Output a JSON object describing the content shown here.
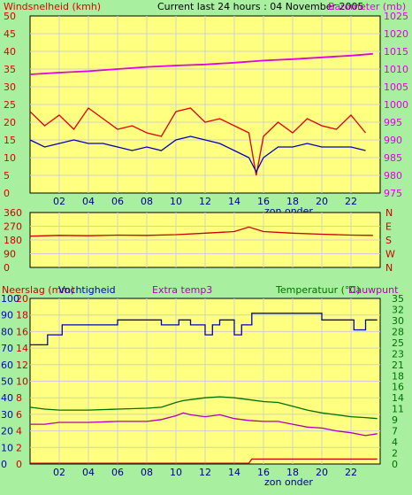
{
  "header": {
    "title": "Current last 24 hours : 04 November 2005",
    "wind_label": "Windsnelheid (kmh)",
    "baro_label": "Barometer (mb)"
  },
  "colors": {
    "background": "#a8f0a0",
    "plot": "#ffff80",
    "grid": "#d0d0d0",
    "wind_speed": "#e00000",
    "wind_avg": "#0000c0",
    "barometer": "#e000e0",
    "direction": "#cc0000",
    "rain": "#cc0000",
    "humidity": "#0000c0",
    "temperature": "#007000",
    "dewpoint": "#b000b0"
  },
  "chart_data": [
    {
      "type": "line",
      "name": "wind-barometer",
      "x_label": "zon onder",
      "x_ticks": [
        "02",
        "04",
        "06",
        "08",
        "10",
        "12",
        "14",
        "16",
        "18",
        "20",
        "22"
      ],
      "y_left_ticks": [
        "0",
        "5",
        "10",
        "15",
        "20",
        "25",
        "30",
        "35",
        "40",
        "45",
        "50"
      ],
      "y_left_range": [
        0,
        50
      ],
      "y_right_ticks": [
        "975",
        "980",
        "985",
        "990",
        "995",
        "1000",
        "1005",
        "1010",
        "1015",
        "1020",
        "1025"
      ],
      "y_right_range": [
        975,
        1025
      ],
      "series": [
        {
          "name": "Windsnelheid (kmh)",
          "axis": "left",
          "key": "wind_speed",
          "x": [
            0,
            1,
            2,
            3,
            4,
            5,
            6,
            7,
            8,
            9,
            10,
            11,
            12,
            13,
            14,
            15,
            15.5,
            16,
            17,
            18,
            19,
            20,
            21,
            22,
            23
          ],
          "y": [
            23,
            19,
            22,
            18,
            24,
            21,
            18,
            19,
            17,
            16,
            23,
            24,
            20,
            21,
            19,
            17,
            5,
            16,
            20,
            17,
            21,
            19,
            18,
            22,
            17
          ]
        },
        {
          "name": "avg",
          "axis": "left",
          "key": "wind_avg",
          "x": [
            0,
            1,
            2,
            3,
            4,
            5,
            6,
            7,
            8,
            9,
            10,
            11,
            12,
            13,
            14,
            15,
            15.5,
            16,
            17,
            18,
            19,
            20,
            21,
            22,
            23
          ],
          "y": [
            15,
            13,
            14,
            15,
            14,
            14,
            13,
            12,
            13,
            12,
            15,
            16,
            15,
            14,
            12,
            10,
            6,
            10,
            13,
            13,
            14,
            13,
            13,
            13,
            12
          ]
        },
        {
          "name": "Barometer (mb)",
          "axis": "right",
          "key": "barometer",
          "x": [
            0,
            2,
            4,
            6,
            8,
            10,
            12,
            14,
            16,
            18,
            20,
            22,
            23.5
          ],
          "y": [
            1008.5,
            1009.0,
            1009.4,
            1010.0,
            1010.6,
            1011.0,
            1011.3,
            1011.8,
            1012.4,
            1012.8,
            1013.3,
            1013.8,
            1014.3
          ]
        }
      ]
    },
    {
      "type": "line",
      "name": "wind-direction",
      "y_left_ticks": [
        "0",
        "90",
        "180",
        "270",
        "360"
      ],
      "y_left_range": [
        0,
        360
      ],
      "y_right_ticks": [
        "N",
        "W",
        "S",
        "E",
        "N"
      ],
      "series": [
        {
          "name": "direction",
          "key": "direction",
          "x": [
            0,
            2,
            4,
            6,
            8,
            10,
            12,
            14,
            15,
            16,
            18,
            20,
            22,
            23.5
          ],
          "y": [
            205,
            210,
            208,
            212,
            210,
            215,
            225,
            235,
            265,
            235,
            225,
            218,
            212,
            210
          ]
        }
      ]
    },
    {
      "type": "line",
      "name": "rain-humidity-temperature",
      "labels": {
        "rain": "Neerslag (mm)",
        "humidity": "Vochtigheid",
        "extra": "Extra temp3",
        "temp": "Temperatuur (°C)",
        "dew": "Dauwpunt"
      },
      "x_label": "zon onder",
      "x_ticks": [
        "02",
        "04",
        "06",
        "08",
        "10",
        "12",
        "14",
        "16",
        "18",
        "20",
        "22"
      ],
      "y_left_ticks": [
        "0",
        "2",
        "4",
        "6",
        "8",
        "10",
        "12",
        "14",
        "16",
        "18",
        "20"
      ],
      "y_left_range": [
        0,
        20
      ],
      "y_left2_ticks": [
        "0",
        "10",
        "20",
        "30",
        "40",
        "50",
        "60",
        "70",
        "80",
        "90",
        "100"
      ],
      "y_right_ticks": [
        "0",
        "2",
        "4",
        "7",
        "9",
        "11",
        "14",
        "16",
        "18",
        "21",
        "23",
        "25",
        "28",
        "30",
        "32",
        "35"
      ],
      "y_right_range": [
        0,
        35
      ],
      "series": [
        {
          "name": "Neerslag (mm)",
          "key": "rain",
          "x": [
            0,
            15,
            15.2,
            23.8
          ],
          "y": [
            0.1,
            0.1,
            0.6,
            0.6
          ]
        },
        {
          "name": "Vochtigheid",
          "key": "humidity",
          "x": [
            0,
            1.2,
            1.2,
            2.2,
            2.2,
            6,
            6,
            9,
            9,
            10.2,
            10.2,
            11,
            11,
            12,
            12,
            12.5,
            12.5,
            13,
            13,
            14,
            14,
            14.5,
            14.5,
            15.2,
            15.2,
            20,
            20,
            22.2,
            22.2,
            23,
            23,
            23.8
          ],
          "y": [
            72,
            72,
            78,
            78,
            84,
            84,
            87,
            87,
            84,
            84,
            87,
            87,
            84,
            84,
            78,
            78,
            84,
            84,
            87,
            87,
            78,
            78,
            84,
            84,
            91,
            91,
            87,
            87,
            81,
            81,
            87,
            87
          ]
        },
        {
          "name": "Temperatuur (°C)",
          "key": "temperature",
          "x": [
            0,
            1,
            2,
            4,
            6,
            8,
            9,
            10,
            10.5,
            11,
            12,
            13,
            14,
            15,
            16,
            17,
            18,
            19,
            20,
            21,
            22,
            23,
            23.8
          ],
          "y": [
            12,
            11.6,
            11.4,
            11.4,
            11.6,
            11.8,
            12.0,
            13.0,
            13.4,
            13.6,
            14.0,
            14.2,
            14.0,
            13.6,
            13.2,
            13.0,
            12.2,
            11.4,
            10.8,
            10.4,
            10.0,
            9.8,
            9.6
          ]
        },
        {
          "name": "Dauwpunt",
          "key": "dewpoint",
          "x": [
            0,
            1,
            2,
            4,
            6,
            8,
            9,
            10,
            10.5,
            11,
            12,
            13,
            14,
            15,
            16,
            17,
            18,
            19,
            20,
            21,
            22,
            23,
            23.8
          ],
          "y": [
            8.4,
            8.4,
            8.8,
            8.8,
            9.0,
            9.0,
            9.4,
            10.2,
            10.8,
            10.4,
            10.0,
            10.4,
            9.6,
            9.2,
            9.0,
            9.0,
            8.4,
            7.8,
            7.6,
            7.0,
            6.6,
            6.0,
            6.4
          ]
        }
      ]
    }
  ]
}
